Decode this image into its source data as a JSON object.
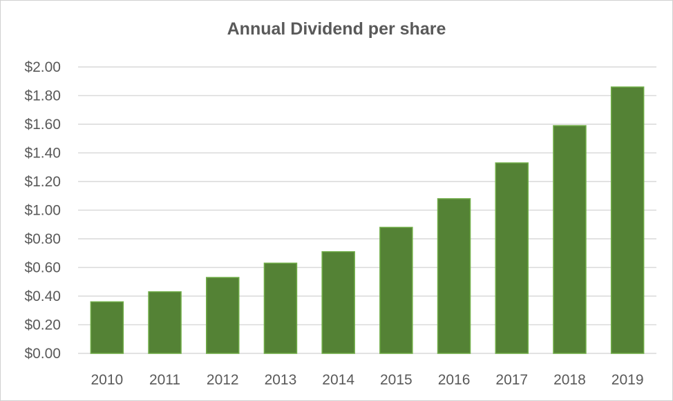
{
  "chart_data": {
    "type": "bar",
    "title": "Annual Dividend per share",
    "xlabel": "",
    "ylabel": "",
    "categories": [
      "2010",
      "2011",
      "2012",
      "2013",
      "2014",
      "2015",
      "2016",
      "2017",
      "2018",
      "2019"
    ],
    "values": [
      0.36,
      0.43,
      0.53,
      0.63,
      0.71,
      0.88,
      1.08,
      1.33,
      1.59,
      1.86
    ],
    "ylim": [
      0,
      2.0
    ],
    "yticks": [
      "$0.00",
      "$0.20",
      "$0.40",
      "$0.60",
      "$0.80",
      "$1.00",
      "$1.20",
      "$1.40",
      "$1.60",
      "$1.80",
      "$2.00"
    ],
    "grid": true,
    "legend": "none",
    "colors": {
      "bar": "#548235",
      "bar_border": "#70ad47",
      "grid": "#d9d9d9",
      "text": "#595959"
    }
  }
}
